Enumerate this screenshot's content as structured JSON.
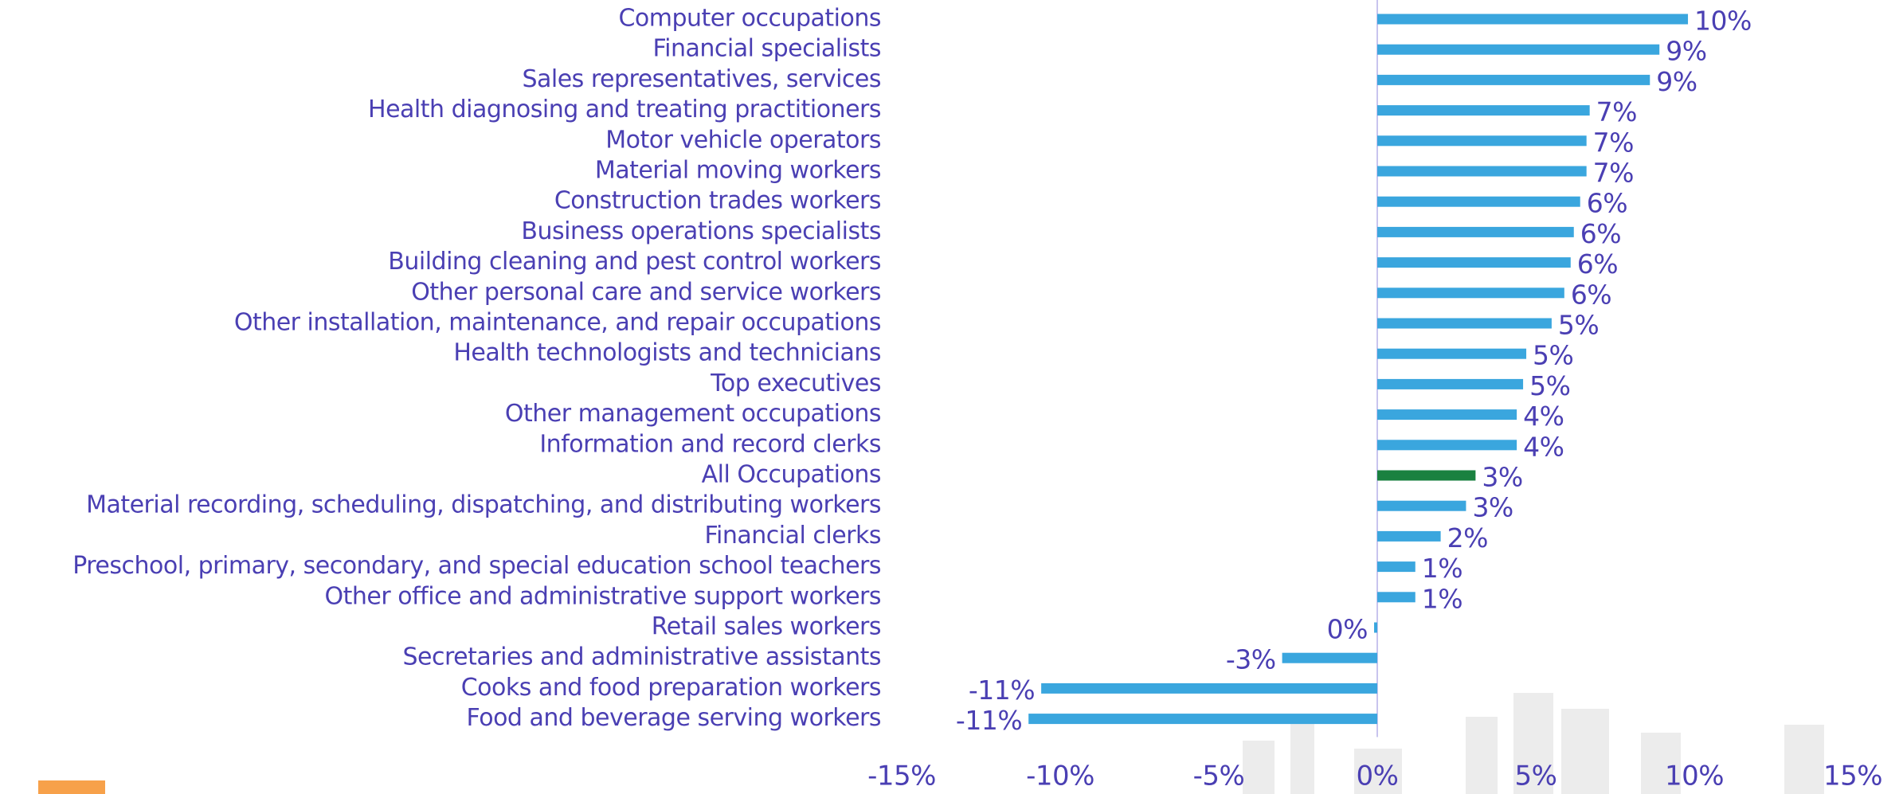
{
  "chart_data": {
    "type": "barh",
    "categories": [
      "Computer occupations",
      "Financial specialists",
      "Sales representatives, services",
      "Health diagnosing and treating practitioners",
      "Motor vehicle operators",
      "Material moving workers",
      "Construction trades workers",
      "Business operations specialists",
      "Building cleaning and pest control workers",
      "Other personal care and service workers",
      "Other installation, maintenance, and repair occupations",
      "Health technologists and technicians",
      "Top executives",
      "Other management occupations",
      "Information and record clerks",
      "All Occupations",
      "Material recording, scheduling, dispatching, and distributing workers",
      "Financial clerks",
      "Preschool, primary, secondary, and special education school teachers",
      "Other office and administrative support workers",
      "Retail sales workers",
      "Secretaries and administrative assistants",
      "Cooks and food preparation workers",
      "Food and beverage serving workers"
    ],
    "values": [
      9.8,
      8.9,
      8.6,
      6.7,
      6.6,
      6.6,
      6.4,
      6.2,
      6.1,
      5.9,
      5.5,
      4.7,
      4.6,
      4.4,
      4.4,
      3.1,
      2.8,
      2.0,
      1.2,
      1.2,
      -0.1,
      -3.0,
      -10.6,
      -11.0
    ],
    "value_labels": [
      "10%",
      "9%",
      "9%",
      "7%",
      "7%",
      "7%",
      "6%",
      "6%",
      "6%",
      "6%",
      "5%",
      "5%",
      "5%",
      "4%",
      "4%",
      "3%",
      "3%",
      "2%",
      "1%",
      "1%",
      "0%",
      "-3%",
      "-11%",
      "-11%"
    ],
    "colors": [
      "#3aa6de",
      "#3aa6de",
      "#3aa6de",
      "#3aa6de",
      "#3aa6de",
      "#3aa6de",
      "#3aa6de",
      "#3aa6de",
      "#3aa6de",
      "#3aa6de",
      "#3aa6de",
      "#3aa6de",
      "#3aa6de",
      "#3aa6de",
      "#3aa6de",
      "#1a8140",
      "#3aa6de",
      "#3aa6de",
      "#3aa6de",
      "#3aa6de",
      "#3aa6de",
      "#3aa6de",
      "#3aa6de",
      "#3aa6de"
    ],
    "xlim": [
      -15,
      15
    ],
    "xticks": [
      {
        "value": -15,
        "label": "-15%"
      },
      {
        "value": -10,
        "label": "-10%"
      },
      {
        "value": -5,
        "label": "-5%"
      },
      {
        "value": 0,
        "label": "0%"
      },
      {
        "value": 5,
        "label": "5%"
      },
      {
        "value": 10,
        "label": "10%"
      },
      {
        "value": 15,
        "label": "15%"
      }
    ]
  }
}
